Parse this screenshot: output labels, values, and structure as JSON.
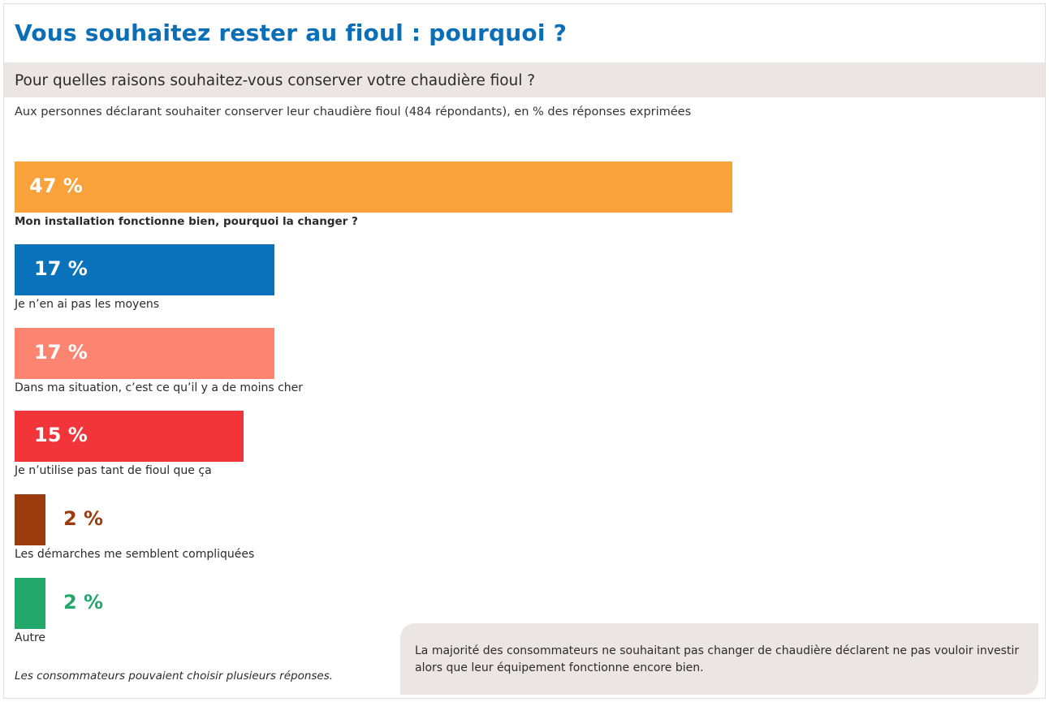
{
  "header": {
    "title": "Vous souhaitez rester au fioul : pourquoi ?",
    "question": "Pour quelles raisons souhaitez-vous conserver votre chaudière fioul ?",
    "base_note": "Aux personnes déclarant souhaiter conserver leur chaudière fioul (484 répondants), en % des réponses exprimées"
  },
  "chart_data": {
    "type": "bar",
    "orientation": "horizontal",
    "categories": [
      "Mon installation fonctionne bien, pourquoi la changer ?",
      "Je n’en ai pas les moyens",
      "Dans ma situation, c’est ce qu’il y a de moins cher",
      "Je n’utilise pas tant de fioul que ça",
      "Les démarches me semblent compliquées",
      "Autre"
    ],
    "values": [
      47,
      17,
      17,
      15,
      2,
      2
    ],
    "value_labels": [
      "47 %",
      "17 %",
      "17 %",
      "15 %",
      "2 %",
      "2 %"
    ],
    "colors": [
      "#f9a23c",
      "#0a72bb",
      "#fd8470",
      "#f2353a",
      "#9c3b0e",
      "#22a86a"
    ],
    "unit": "%"
  },
  "footnote": "Les consommateurs pouvaient choisir plusieurs réponses.",
  "callout": {
    "text": "La majorité des consommateurs ne souhaitant pas changer de chaudière déclarent ne pas vouloir investir alors que leur équipement fonctionne encore bien."
  }
}
